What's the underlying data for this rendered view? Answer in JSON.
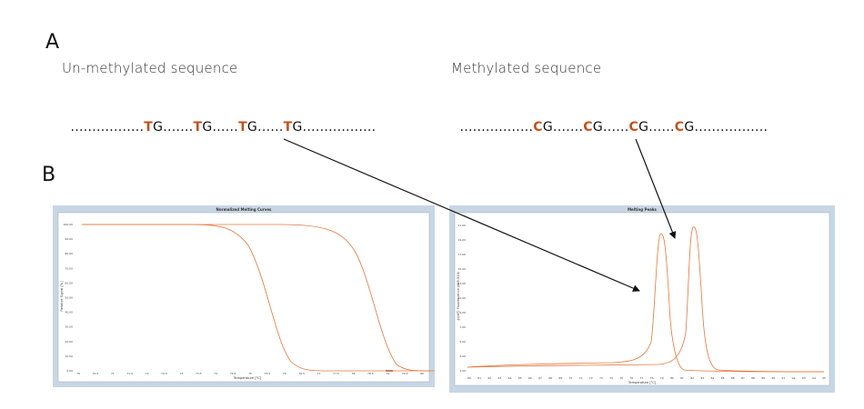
{
  "panelA": {
    "label": "A",
    "unmethylated": {
      "title": "Un-methylated sequence",
      "segments": [
        ".................",
        "T",
        "G.......",
        "T",
        "G......",
        "T",
        "G......",
        "T",
        "G................."
      ]
    },
    "methylated": {
      "title": "Methylated sequence",
      "segments": [
        ".................",
        "C",
        "G.......",
        "C",
        "G......",
        "C",
        "G......",
        "C",
        "G................."
      ]
    }
  },
  "panelB": {
    "label": "B"
  },
  "charts": {
    "left": {
      "title": "Normalized Melting Curves",
      "xlabel": "Temperature [°C]",
      "ylabel": "Relative Signal [%]",
      "yticks": [
        "100.00",
        "90.00",
        "80.00",
        "70.00",
        "60.00",
        "50.00",
        "40.00",
        "30.00",
        "20.00",
        "10.00",
        "0.00"
      ],
      "xticks": [
        "70",
        "70.5",
        "71",
        "71.5",
        "72",
        "72.5",
        "73",
        "73.5",
        "74",
        "74.5",
        "75",
        "75.5",
        "76",
        "76.5",
        "77",
        "77.5",
        "78",
        "78.5",
        "79",
        "79.5",
        "80"
      ]
    },
    "right": {
      "title": "Melting Peaks",
      "xlabel": "Temperature [°C]",
      "ylabel": "-(d/dT) Fluorescence (465-510)",
      "yticks": [
        "21.00",
        "19.00",
        "17.00",
        "15.00",
        "13.00",
        "11.00",
        "9.00",
        "7.00",
        "5.00",
        "3.00",
        "1.00"
      ],
      "xticks": [
        "60",
        "61",
        "62",
        "63",
        "64",
        "65",
        "66",
        "67",
        "68",
        "69",
        "70",
        "71",
        "72",
        "73",
        "74",
        "75",
        "76",
        "77",
        "78",
        "79",
        "80",
        "81",
        "82",
        "83",
        "84",
        "85",
        "86",
        "87",
        "88",
        "89",
        "90",
        "91",
        "92",
        "93",
        "94",
        "95"
      ]
    }
  },
  "colors": {
    "curve": "#e2773d",
    "highlight": "#c2531c",
    "frame": "#c8d6e4"
  }
}
